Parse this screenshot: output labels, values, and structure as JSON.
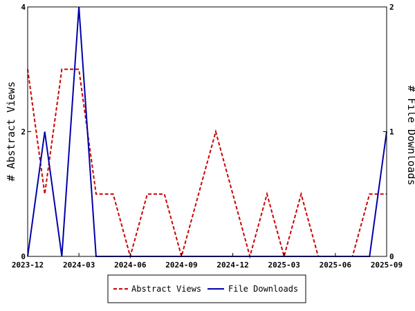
{
  "chart_data": {
    "type": "line",
    "title": "",
    "ylabel_left": "# Abstract Views",
    "ylabel_right": "# File Downloads",
    "y_left_range": [
      0,
      4
    ],
    "y_left_ticks": [
      "0",
      "2",
      "4"
    ],
    "y_right_range": [
      0,
      2
    ],
    "y_right_ticks": [
      "0",
      "1",
      "2"
    ],
    "x_ticks": [
      "2023-12",
      "2024-03",
      "2024-06",
      "2024-09",
      "2024-12",
      "2025-03",
      "2025-06",
      "2025-09"
    ],
    "x": [
      "2023-12",
      "2024-01",
      "2024-02",
      "2024-03",
      "2024-04",
      "2024-05",
      "2024-06",
      "2024-07",
      "2024-08",
      "2024-09",
      "2024-10",
      "2024-11",
      "2024-12",
      "2025-01",
      "2025-02",
      "2025-03",
      "2025-04",
      "2025-05",
      "2025-06",
      "2025-07",
      "2025-08",
      "2025-09"
    ],
    "series": [
      {
        "name": "Abstract Views",
        "axis": "left",
        "color": "#cc0000",
        "style": "dashed",
        "values": [
          3,
          1,
          3,
          3,
          1,
          1,
          0,
          1,
          1,
          0,
          1,
          2,
          1,
          0,
          1,
          0,
          1,
          0,
          0,
          0,
          1,
          1
        ]
      },
      {
        "name": "File Downloads",
        "axis": "right",
        "color": "#0000aa",
        "style": "solid",
        "values": [
          0,
          1,
          0,
          2,
          0,
          0,
          0,
          0,
          0,
          0,
          0,
          0,
          0,
          0,
          0,
          0,
          0,
          0,
          0,
          0,
          0,
          1
        ]
      }
    ],
    "grid": false,
    "legend": "bottom-center"
  }
}
